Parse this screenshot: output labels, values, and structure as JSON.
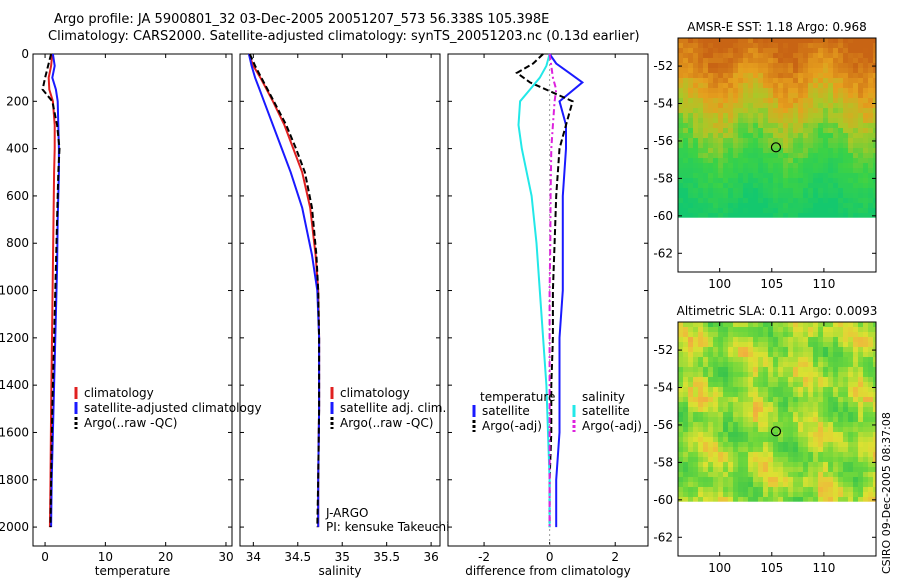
{
  "header": {
    "line1": "Argo profile: JA 5900801_32 03-Dec-2005 20051207_573 56.338S 105.398E",
    "line2": "Climatology: CARS2000. Satellite-adjusted climatology: synTS_20051203.nc (0.13d earlier)"
  },
  "credit": {
    "float_program": "J-ARGO",
    "pi": "PI: kensuke Takeuchi",
    "stamp": "CSIRO 09-Dec-2005 08:37:08"
  },
  "colors": {
    "climatology": "#e02020",
    "satellite": "#1a1aff",
    "argo": "#000000",
    "salinity_satellite": "#22e8e8",
    "salinity_argo": "#dd22dd",
    "marker": "#000000"
  },
  "chart_data": [
    {
      "type": "line",
      "name": "temperature-profile",
      "xlabel": "temperature",
      "ylabel": "",
      "xlim": [
        -2,
        31
      ],
      "ylim": [
        2080,
        0
      ],
      "y_reversed": true,
      "xticks": [
        0,
        10,
        20,
        30
      ],
      "yticks": [
        0,
        200,
        400,
        600,
        800,
        1000,
        1200,
        1400,
        1600,
        1800,
        2000
      ],
      "legend": {
        "placement": "lower-middle",
        "entries": [
          "climatology",
          "satellite-adjusted climatology",
          "Argo(..raw -QC)"
        ]
      },
      "series": [
        {
          "name": "climatology",
          "color": "#e02020",
          "style": "solid",
          "x": [
            1.2,
            1.0,
            0.6,
            0.7,
            1.3,
            1.6,
            1.6,
            1.5,
            1.4,
            1.3,
            1.2,
            1.1,
            1.0,
            0.9,
            0.8
          ],
          "y": [
            0,
            50,
            100,
            150,
            200,
            300,
            400,
            500,
            700,
            900,
            1100,
            1300,
            1500,
            1800,
            2000
          ]
        },
        {
          "name": "satellite-adjusted climatology",
          "color": "#1a1aff",
          "style": "solid",
          "x": [
            1.3,
            1.6,
            1.2,
            1.8,
            2.1,
            2.2,
            2.3,
            2.3,
            2.1,
            2.0,
            1.8,
            1.6,
            1.4,
            1.1,
            1.0
          ],
          "y": [
            0,
            50,
            100,
            150,
            200,
            300,
            400,
            500,
            700,
            900,
            1100,
            1300,
            1500,
            1800,
            2000
          ]
        },
        {
          "name": "Argo(..raw -QC)",
          "color": "#000000",
          "style": "dashed",
          "x": [
            1.0,
            0.5,
            0.0,
            -0.4,
            1.2,
            2.0,
            2.4,
            2.2,
            2.0,
            1.8,
            1.6,
            1.4,
            1.2,
            1.0,
            0.9
          ],
          "y": [
            0,
            50,
            100,
            150,
            200,
            300,
            400,
            500,
            700,
            900,
            1100,
            1300,
            1500,
            1800,
            2000
          ]
        }
      ]
    },
    {
      "type": "line",
      "name": "salinity-profile",
      "xlabel": "salinity",
      "ylabel": "",
      "xlim": [
        33.85,
        36.1
      ],
      "ylim": [
        2080,
        0
      ],
      "y_reversed": true,
      "xticks": [
        34,
        34.5,
        35,
        35.5,
        36
      ],
      "xtick_labels": [
        "34",
        "34.5",
        "35",
        "35.5",
        "36"
      ],
      "legend": {
        "placement": "lower-middle",
        "entries": [
          "climatology",
          "satellite adj. clim.",
          "Argo(..raw -QC)"
        ]
      },
      "series": [
        {
          "name": "climatology",
          "color": "#e02020",
          "style": "solid",
          "x": [
            33.95,
            34.0,
            34.08,
            34.15,
            34.22,
            34.35,
            34.45,
            34.55,
            34.64,
            34.7,
            34.73,
            34.74,
            34.74,
            34.73,
            34.73
          ],
          "y": [
            0,
            50,
            100,
            150,
            200,
            300,
            400,
            500,
            650,
            850,
            1000,
            1200,
            1500,
            1800,
            2000
          ]
        },
        {
          "name": "satellite adj. clim.",
          "color": "#1a1aff",
          "style": "solid",
          "x": [
            33.95,
            33.98,
            34.02,
            34.07,
            34.12,
            34.22,
            34.32,
            34.42,
            34.55,
            34.66,
            34.72,
            34.74,
            34.74,
            34.73,
            34.73
          ],
          "y": [
            0,
            50,
            100,
            150,
            200,
            300,
            400,
            500,
            650,
            850,
            1000,
            1200,
            1500,
            1800,
            2000
          ]
        },
        {
          "name": "Argo(..raw -QC)",
          "color": "#000000",
          "style": "dashed",
          "x": [
            33.96,
            34.02,
            34.09,
            34.16,
            34.23,
            34.37,
            34.48,
            34.58,
            34.66,
            34.71,
            34.73,
            34.74,
            34.74,
            34.73,
            34.72
          ],
          "y": [
            0,
            50,
            100,
            150,
            200,
            300,
            400,
            500,
            650,
            850,
            1000,
            1200,
            1500,
            1800,
            2000
          ]
        }
      ]
    },
    {
      "type": "line",
      "name": "difference-from-climatology",
      "xlabel": "difference from climatology",
      "ylabel": "",
      "xlim": [
        -3.1,
        3.0
      ],
      "ylim": [
        2080,
        0
      ],
      "y_reversed": true,
      "xticks": [
        -2,
        0,
        2
      ],
      "legend": {
        "placement": "lower-middle",
        "groups": [
          "temperature",
          "salinity"
        ],
        "entries": [
          "satellite",
          "Argo(-adj)",
          "satellite",
          "Argo(-adj)"
        ]
      },
      "series": [
        {
          "name": "temperature satellite",
          "color": "#1a1aff",
          "style": "solid",
          "x": [
            0.0,
            0.2,
            0.6,
            1.0,
            0.3,
            0.5,
            0.5,
            0.4,
            0.4,
            0.4,
            0.3,
            0.3,
            0.3,
            0.2,
            0.2
          ],
          "y": [
            0,
            40,
            80,
            120,
            200,
            300,
            400,
            600,
            800,
            1000,
            1200,
            1400,
            1600,
            1800,
            2000
          ]
        },
        {
          "name": "temperature Argo(-adj)",
          "color": "#000000",
          "style": "dashed",
          "x": [
            -0.2,
            -0.5,
            -1.0,
            -0.6,
            0.7,
            0.5,
            0.3,
            0.2,
            0.15,
            0.1,
            0.1,
            0.05,
            0.05,
            0.0,
            0.0
          ],
          "y": [
            0,
            40,
            80,
            120,
            200,
            300,
            400,
            600,
            800,
            1000,
            1200,
            1400,
            1600,
            1800,
            2000
          ]
        },
        {
          "name": "salinity satellite",
          "color": "#22e8e8",
          "style": "solid",
          "x": [
            0.0,
            -0.1,
            -0.3,
            -0.6,
            -0.9,
            -0.95,
            -0.85,
            -0.7,
            -0.55,
            -0.4,
            -0.3,
            -0.2,
            -0.1,
            0.0,
            0.0
          ],
          "y": [
            0,
            50,
            100,
            150,
            200,
            300,
            400,
            500,
            600,
            800,
            1000,
            1200,
            1400,
            1800,
            2000
          ]
        },
        {
          "name": "salinity Argo(-adj)",
          "color": "#dd22dd",
          "style": "dashdot",
          "x": [
            0.0,
            0.05,
            0.1,
            0.2,
            0.15,
            0.1,
            0.05,
            0.03,
            0.02,
            0.0,
            0.0,
            0.0,
            0.0,
            0.0
          ],
          "y": [
            0,
            50,
            100,
            150,
            200,
            300,
            400,
            600,
            800,
            1000,
            1200,
            1400,
            1800,
            2000
          ]
        }
      ]
    },
    {
      "type": "heatmap",
      "name": "amsr-sst-map",
      "title": "AMSR-E SST: 1.18 Argo: 0.968",
      "xlim": [
        96,
        115
      ],
      "ylim": [
        -63,
        -50.5
      ],
      "xticks": [
        100,
        105,
        110
      ],
      "yticks": [
        -52,
        -54,
        -56,
        -58,
        -60,
        -62
      ],
      "data_bottom": -60.1,
      "colormap": "orange-to-green",
      "marker": {
        "lon": 105.4,
        "lat": -56.34
      }
    },
    {
      "type": "heatmap",
      "name": "altimetric-sla-map",
      "title": "Altimetric SLA: 0.11 Argo: 0.0093",
      "xlim": [
        96,
        115
      ],
      "ylim": [
        -63,
        -50.5
      ],
      "xticks": [
        100,
        105,
        110
      ],
      "yticks": [
        -52,
        -54,
        -56,
        -58,
        -60,
        -62
      ],
      "data_bottom": -60.1,
      "colormap": "green-yellow-orange",
      "marker": {
        "lon": 105.4,
        "lat": -56.34
      }
    }
  ]
}
